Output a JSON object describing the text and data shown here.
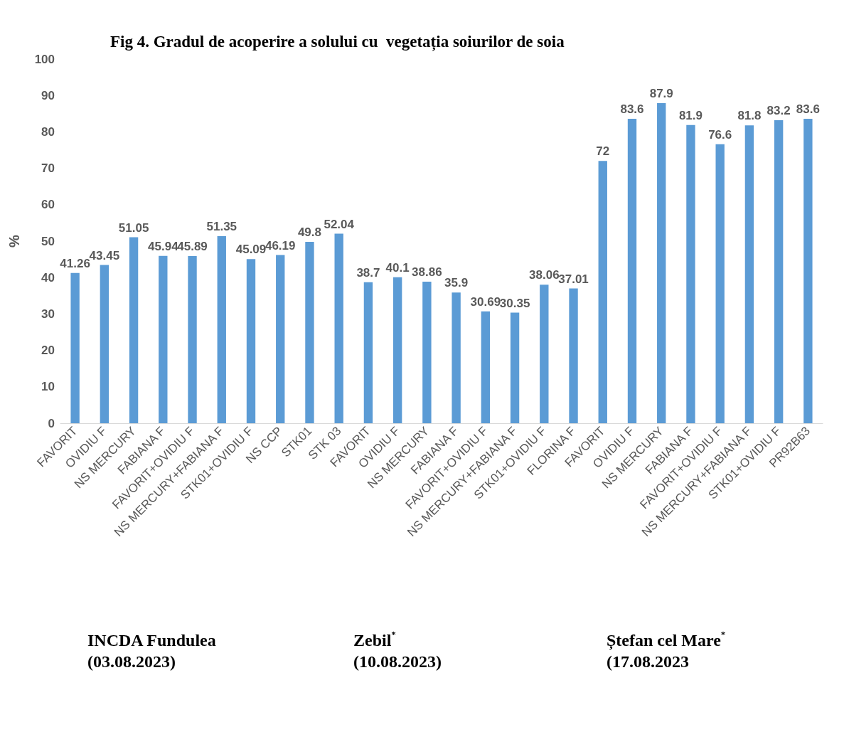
{
  "chart_data": {
    "type": "bar",
    "title": "Fig 4. Gradul de acoperire a solului cu  vegetația soiurilor de soia",
    "ylabel": "%",
    "categories": [
      "FAVORIT",
      "OVIDIU F",
      "NS MERCURY",
      "FABIANA F",
      "FAVORIT+OVIDIU F",
      "NS MERCURY+FABIANA F",
      "STK01+OVIDIU F",
      "NS CCP",
      "STK01",
      "STK 03",
      "FAVORIT",
      "OVIDIU F",
      "NS MERCURY",
      "FABIANA F",
      "FAVORIT+OVIDIU F",
      "NS MERCURY+FABIANA F",
      "STK01+OVIDIU F",
      "FLORINA F",
      "FAVORIT",
      "OVIDIU F",
      "NS MERCURY",
      "FABIANA F",
      "FAVORIT+OVIDIU F",
      "NS MERCURY+FABIANA F",
      "STK01+OVIDIU F",
      "PR92B63"
    ],
    "values": [
      41.26,
      43.45,
      51.05,
      45.94,
      45.89,
      51.35,
      45.09,
      46.19,
      49.8,
      52.04,
      38.7,
      40.1,
      38.86,
      35.9,
      30.69,
      30.35,
      38.06,
      37.01,
      72,
      83.6,
      87.9,
      81.9,
      76.6,
      81.8,
      83.2,
      83.6
    ],
    "color": "#5b9bd5",
    "data_labels": true,
    "grid": false,
    "ylim": [
      0,
      100
    ],
    "yticks": [
      0,
      10,
      20,
      30,
      40,
      50,
      60,
      70,
      80,
      90,
      100
    ],
    "annotations": [
      "INCDA Fundulea (03.08.2023)",
      "Zebil$^{*}$ (10.08.2023)",
      "Ștefan cel Mare$^{*}$ (17.08.2023"
    ]
  }
}
